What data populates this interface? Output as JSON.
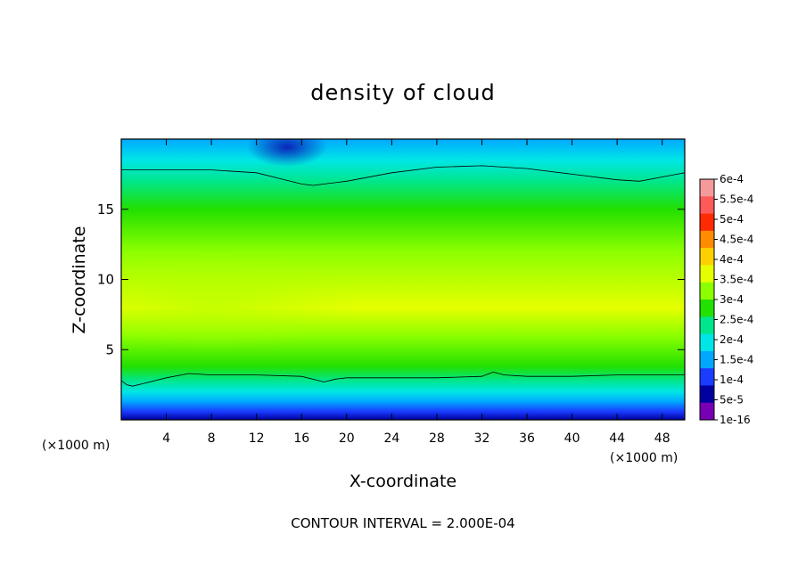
{
  "chart_data": {
    "type": "heatmap",
    "title": "density of cloud",
    "xlabel": "X-coordinate",
    "ylabel": "Z-coordinate",
    "x_unit_left": "(×1000 m)",
    "x_unit_right": "(×1000 m)",
    "footer": "CONTOUR INTERVAL = 2.000E-04",
    "xlim": [
      0,
      50
    ],
    "ylim": [
      0,
      20
    ],
    "x_ticks": [
      4,
      8,
      12,
      16,
      20,
      24,
      28,
      32,
      36,
      40,
      44,
      48
    ],
    "y_ticks": [
      5,
      10,
      15
    ],
    "colorbar": {
      "labels": [
        "6e-4",
        "5.5e-4",
        "5e-4",
        "4.5e-4",
        "4e-4",
        "3.5e-4",
        "3e-4",
        "2.5e-4",
        "2e-4",
        "1.5e-4",
        "1e-4",
        "5e-5",
        "1e-16"
      ],
      "colors": [
        "#f59a9a",
        "#ff5a5a",
        "#ff2a00",
        "#ff8c00",
        "#ffd000",
        "#e6ff00",
        "#8cff00",
        "#22e000",
        "#00e68c",
        "#00e6e6",
        "#00a8ff",
        "#1a3cff",
        "#0000a0",
        "#7800b4"
      ]
    },
    "bands": [
      {
        "z": 0.0,
        "value": 1e-16
      },
      {
        "z": 0.6,
        "value": 5e-05
      },
      {
        "z": 1.3,
        "value": 0.0001
      },
      {
        "z": 2.0,
        "value": 0.00015
      },
      {
        "z": 2.8,
        "value": 0.0002
      },
      {
        "z": 3.8,
        "value": 0.00025
      },
      {
        "z": 6.0,
        "value": 0.0003
      },
      {
        "z": 8.0,
        "value": 0.00035
      },
      {
        "z": 12.0,
        "value": 0.0003
      },
      {
        "z": 15.0,
        "value": 0.00025
      },
      {
        "z": 17.0,
        "value": 0.0002
      },
      {
        "z": 18.5,
        "value": 0.00015
      },
      {
        "z": 20.0,
        "value": 0.0001
      }
    ],
    "contour_level": 0.0002,
    "contour_upper": {
      "x": [
        0,
        4,
        8,
        12,
        14,
        16,
        17,
        20,
        24,
        28,
        32,
        36,
        40,
        44,
        46,
        48,
        50
      ],
      "z": [
        17.8,
        17.8,
        17.8,
        17.6,
        17.2,
        16.8,
        16.7,
        17.0,
        17.6,
        18.0,
        18.1,
        17.9,
        17.5,
        17.1,
        17.0,
        17.3,
        17.6
      ]
    },
    "contour_lower": {
      "x": [
        0,
        0.5,
        1,
        2,
        4,
        6,
        8,
        12,
        16,
        18,
        19,
        20,
        24,
        28,
        32,
        33,
        34,
        36,
        40,
        44,
        48,
        50
      ],
      "z": [
        2.8,
        2.5,
        2.4,
        2.6,
        3.0,
        3.3,
        3.2,
        3.2,
        3.1,
        2.7,
        2.9,
        3.0,
        3.0,
        3.0,
        3.1,
        3.4,
        3.2,
        3.1,
        3.1,
        3.2,
        3.2,
        3.2
      ]
    }
  }
}
